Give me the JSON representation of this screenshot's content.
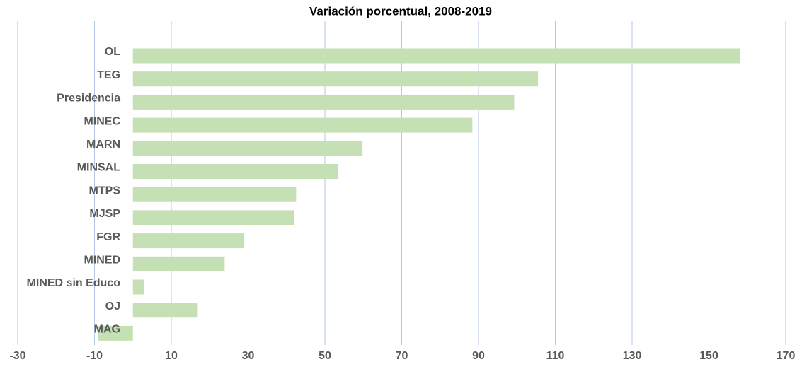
{
  "chart_data": {
    "type": "barh",
    "title": "Variación porcentual, 2008-2019",
    "categories": [
      "OL",
      "TEG",
      "Presidencia",
      "MINEC",
      "MARN",
      "MINSAL",
      "MTPS",
      "MJSP",
      "FGR",
      "MINED",
      "MINED sin Educo",
      "OJ",
      "MAG"
    ],
    "values": [
      158.2,
      105.5,
      99.3,
      88.4,
      59.8,
      53.4,
      42.5,
      41.9,
      29.0,
      23.9,
      3.0,
      16.9,
      -9.1
    ],
    "color": "#c5e0b4",
    "xlim": [
      -30,
      170
    ],
    "xticks": [
      -30,
      -10,
      10,
      30,
      50,
      70,
      90,
      110,
      130,
      150,
      170
    ],
    "grid": true,
    "grid_color": "#b4c7e7"
  }
}
